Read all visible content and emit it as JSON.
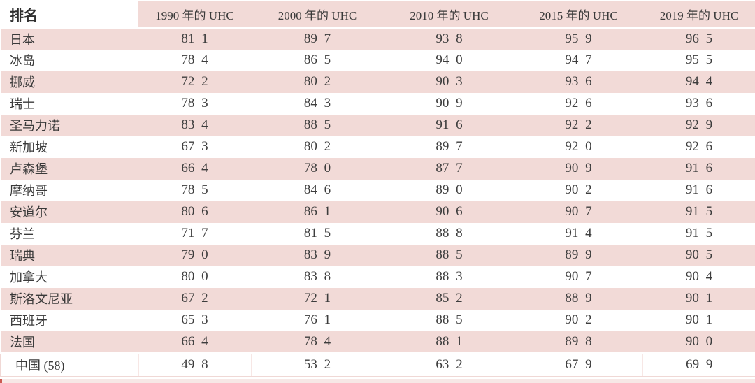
{
  "table": {
    "rank_header": "排名",
    "year_headers": [
      "1990 年的 UHC",
      "2000 年的 UHC",
      "2010 年的 UHC",
      "2015 年的 UHC",
      "2019 年的 UHC"
    ],
    "rows": [
      {
        "country": "日本",
        "values": [
          "81 1",
          "89 7",
          "93 8",
          "95 9",
          "96 5"
        ]
      },
      {
        "country": "冰岛",
        "values": [
          "78 4",
          "86 5",
          "94 0",
          "94 7",
          "95 5"
        ]
      },
      {
        "country": "挪威",
        "values": [
          "72 2",
          "80 2",
          "90 3",
          "93 6",
          "94 4"
        ]
      },
      {
        "country": "瑞士",
        "values": [
          "78 3",
          "84 3",
          "90 9",
          "92 6",
          "93 6"
        ]
      },
      {
        "country": "圣马力诺",
        "values": [
          "83 4",
          "88 5",
          "91 6",
          "92 2",
          "92 9"
        ]
      },
      {
        "country": "新加坡",
        "values": [
          "67 3",
          "80 2",
          "89 7",
          "92 0",
          "92 6"
        ]
      },
      {
        "country": "卢森堡",
        "values": [
          "66 4",
          "78 0",
          "87 7",
          "90 9",
          "91 6"
        ]
      },
      {
        "country": "摩纳哥",
        "values": [
          "78 5",
          "84 6",
          "89 0",
          "90 2",
          "91 6"
        ]
      },
      {
        "country": "安道尔",
        "values": [
          "80 6",
          "86 1",
          "90 6",
          "90 7",
          "91 5"
        ]
      },
      {
        "country": "芬兰",
        "values": [
          "71 7",
          "81 5",
          "88 8",
          "91 4",
          "91 5"
        ]
      },
      {
        "country": "瑞典",
        "values": [
          "79 0",
          "83 9",
          "88 5",
          "89 9",
          "90 5"
        ]
      },
      {
        "country": "加拿大",
        "values": [
          "80 0",
          "83 8",
          "88 3",
          "90 7",
          "90 4"
        ]
      },
      {
        "country": "斯洛文尼亚",
        "values": [
          "67 2",
          "72 1",
          "85 2",
          "88 9",
          "90 1"
        ]
      },
      {
        "country": "西班牙",
        "values": [
          "65 3",
          "76 1",
          "88 5",
          "90 2",
          "90 1"
        ]
      },
      {
        "country": "法国",
        "values": [
          "66 4",
          "78 4",
          "88 1",
          "89 8",
          "90 0"
        ]
      },
      {
        "country": "中国 (58)",
        "values": [
          "49 8",
          "53 2",
          "63 2",
          "67 9",
          "69 9"
        ]
      }
    ]
  },
  "colors": {
    "row_pink": "#f2dad7",
    "strip_pink": "#f7e8e6",
    "grid_pink": "#f0d8d5",
    "text": "#3a3a3a",
    "accent_red": "#cc5a52"
  },
  "chart_data": {
    "type": "table",
    "columns": [
      "排名",
      "1990 年的 UHC",
      "2000 年的 UHC",
      "2010 年的 UHC",
      "2015 年的 UHC",
      "2019 年的 UHC"
    ],
    "rows": [
      [
        "日本",
        81.1,
        89.7,
        93.8,
        95.9,
        96.5
      ],
      [
        "冰岛",
        78.4,
        86.5,
        94.0,
        94.7,
        95.5
      ],
      [
        "挪威",
        72.2,
        80.2,
        90.3,
        93.6,
        94.4
      ],
      [
        "瑞士",
        78.3,
        84.3,
        90.9,
        92.6,
        93.6
      ],
      [
        "圣马力诺",
        83.4,
        88.5,
        91.6,
        92.2,
        92.9
      ],
      [
        "新加坡",
        67.3,
        80.2,
        89.7,
        92.0,
        92.6
      ],
      [
        "卢森堡",
        66.4,
        78.0,
        87.7,
        90.9,
        91.6
      ],
      [
        "摩纳哥",
        78.5,
        84.6,
        89.0,
        90.2,
        91.6
      ],
      [
        "安道尔",
        80.6,
        86.1,
        90.6,
        90.7,
        91.5
      ],
      [
        "芬兰",
        71.7,
        81.5,
        88.8,
        91.4,
        91.5
      ],
      [
        "瑞典",
        79.0,
        83.9,
        88.5,
        89.9,
        90.5
      ],
      [
        "加拿大",
        80.0,
        83.8,
        88.3,
        90.7,
        90.4
      ],
      [
        "斯洛文尼亚",
        67.2,
        72.1,
        85.2,
        88.9,
        90.1
      ],
      [
        "西班牙",
        65.3,
        76.1,
        88.5,
        90.2,
        90.1
      ],
      [
        "法国",
        66.4,
        78.4,
        88.1,
        89.8,
        90.0
      ],
      [
        "中国 (58)",
        49.8,
        53.2,
        63.2,
        67.9,
        69.9
      ]
    ]
  }
}
